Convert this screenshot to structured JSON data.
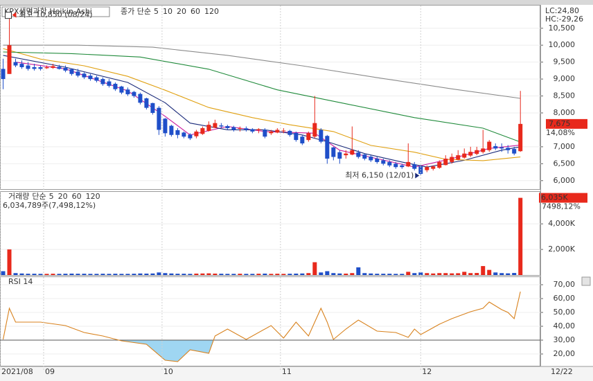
{
  "chart_data": [
    {
      "type": "candlestick",
      "title": "KPX생명과학  Heikin-Ashi",
      "ma_label": "종가 단순",
      "high_note": "최고 10,850 (08/24)",
      "low_note": "최저 6,150 (12/01)",
      "lc_text": "LC:24,80",
      "hc_text": "HC:-29,26",
      "price_tag": "7,675",
      "change_tag": "14,08%",
      "up_color": "#e8291c",
      "down_color": "#1f4fc9",
      "xlim": [
        -0.5,
        86.2
      ],
      "ylim": [
        5750,
        11170
      ],
      "yticks": [
        {
          "value": 6000,
          "label": "6,000"
        },
        {
          "value": 6500,
          "label": "6,500"
        },
        {
          "value": 7000,
          "label": "7,000"
        },
        {
          "value": 8000,
          "label": "8,000"
        },
        {
          "value": 8500,
          "label": "8,500"
        },
        {
          "value": 9000,
          "label": "9,000"
        },
        {
          "value": 9500,
          "label": "9,500"
        },
        {
          "value": 10000,
          "label": "10,000"
        },
        {
          "value": 10500,
          "label": "10,500"
        }
      ],
      "open": [
        9300,
        9150,
        9500,
        9450,
        9400,
        9350,
        9350,
        9320,
        9330,
        9360,
        9330,
        9290,
        9220,
        9160,
        9100,
        9050,
        9000,
        8930,
        8860,
        8780,
        8690,
        8620,
        8560,
        8430,
        8290,
        8150,
        7830,
        7620,
        7490,
        7420,
        7360,
        7310,
        7380,
        7470,
        7560,
        7630,
        7610,
        7580,
        7540,
        7545,
        7520,
        7490,
        7505,
        7400,
        7420,
        7460,
        7470,
        7410,
        7300,
        7200,
        7300,
        7500,
        7320,
        6980,
        6840,
        6750,
        6770,
        6830,
        6770,
        6710,
        6650,
        6600,
        6550,
        6500,
        6450,
        6420,
        6480,
        6420,
        6310,
        6350,
        6380,
        6460,
        6550,
        6620,
        6680,
        6740,
        6790,
        6845,
        6900,
        7020,
        6985,
        6970,
        6935,
        6870
      ],
      "high": [
        9600,
        10850,
        9600,
        9550,
        9500,
        9450,
        9400,
        9400,
        9450,
        9420,
        9400,
        9300,
        9300,
        9200,
        9150,
        9100,
        9050,
        9000,
        8900,
        8800,
        8750,
        8650,
        8600,
        8450,
        8300,
        8200,
        7850,
        7650,
        7550,
        7450,
        7400,
        7500,
        7600,
        7750,
        7800,
        7700,
        7650,
        7620,
        7600,
        7600,
        7550,
        7550,
        7550,
        7500,
        7550,
        7550,
        7500,
        7450,
        7350,
        7450,
        8500,
        7550,
        7350,
        7000,
        6900,
        6900,
        7600,
        6900,
        6800,
        6750,
        6700,
        6650,
        6600,
        6550,
        6500,
        7100,
        6550,
        6450,
        6450,
        6450,
        6600,
        6750,
        6800,
        6900,
        6950,
        7000,
        7000,
        7500,
        7200,
        7100,
        7100,
        7050,
        7000,
        8650
      ],
      "low": [
        8700,
        9150,
        9350,
        9300,
        9250,
        9250,
        9250,
        9300,
        9300,
        9280,
        9200,
        9100,
        9050,
        9000,
        8950,
        8900,
        8800,
        8750,
        8650,
        8550,
        8500,
        8450,
        8250,
        8100,
        7950,
        7350,
        7300,
        7300,
        7250,
        7250,
        7200,
        7250,
        7350,
        7450,
        7550,
        7550,
        7500,
        7450,
        7450,
        7450,
        7400,
        7400,
        7250,
        7350,
        7400,
        7400,
        7300,
        7150,
        7050,
        7150,
        7250,
        7100,
        6500,
        6600,
        6500,
        6650,
        6750,
        6650,
        6600,
        6550,
        6500,
        6450,
        6400,
        6350,
        6350,
        6400,
        6300,
        6150,
        6250,
        6300,
        6350,
        6450,
        6500,
        6600,
        6650,
        6700,
        6750,
        6800,
        6850,
        6900,
        6850,
        6800,
        6750,
        6850
      ],
      "close": [
        9000,
        10000,
        9400,
        9350,
        9300,
        9300,
        9300,
        9350,
        9380,
        9300,
        9250,
        9150,
        9100,
        9050,
        9000,
        8950,
        8850,
        8800,
        8700,
        8600,
        8550,
        8500,
        8300,
        8150,
        8000,
        7500,
        7400,
        7350,
        7350,
        7300,
        7250,
        7450,
        7550,
        7650,
        7700,
        7600,
        7550,
        7500,
        7550,
        7500,
        7450,
        7520,
        7300,
        7450,
        7500,
        7480,
        7350,
        7200,
        7100,
        7400,
        7700,
        7150,
        6650,
        6700,
        6650,
        6800,
        6900,
        6700,
        6650,
        6600,
        6550,
        6500,
        6450,
        6400,
        6400,
        6550,
        6350,
        6200,
        6400,
        6420,
        6550,
        6650,
        6700,
        6750,
        6800,
        6850,
        6900,
        6950,
        7150,
        6950,
        6950,
        6900,
        6800,
        7675
      ],
      "series": [
        {
          "name": "5",
          "color": "#c8189c",
          "x": [
            2,
            10,
            20,
            26,
            30,
            36,
            42,
            50,
            54,
            60,
            66,
            72,
            78,
            83
          ],
          "values": [
            9500,
            9300,
            8650,
            7900,
            7350,
            7600,
            7450,
            7400,
            6900,
            6650,
            6400,
            6650,
            6950,
            7050
          ]
        },
        {
          "name": "10",
          "color": "#1a2a7a",
          "x": [
            0,
            10,
            20,
            26,
            30,
            36,
            42,
            48,
            52,
            58,
            64,
            68,
            74,
            80,
            83
          ],
          "values": [
            9700,
            9350,
            8900,
            8300,
            7700,
            7500,
            7500,
            7350,
            7150,
            6800,
            6550,
            6400,
            6600,
            6900,
            7000
          ]
        },
        {
          "name": "20",
          "color": "#e0a010",
          "x": [
            0,
            6,
            13,
            20,
            26,
            33,
            40,
            46,
            53,
            59,
            66,
            71,
            77,
            83
          ],
          "values": [
            9900,
            9590,
            9390,
            9080,
            8670,
            8160,
            7860,
            7650,
            7450,
            7040,
            6840,
            6630,
            6590,
            6700
          ]
        },
        {
          "name": "60",
          "color": "#1f8a3a",
          "x": [
            0,
            11,
            22,
            33,
            44,
            55,
            66,
            77,
            83
          ],
          "values": [
            9800,
            9750,
            9650,
            9290,
            8680,
            8270,
            7860,
            7550,
            7140
          ]
        },
        {
          "name": "120",
          "color": "#8a8a8a",
          "x": [
            0,
            12,
            24,
            36,
            48,
            60,
            72,
            83
          ],
          "values": [
            10000,
            10000,
            9940,
            9700,
            9390,
            9040,
            8710,
            8430
          ]
        }
      ]
    },
    {
      "type": "bar",
      "title": "거래량",
      "ma_label": "단순",
      "volume_text": "6,034,789주(7,498,12%)",
      "tag": "6,035K",
      "tag2": "7498,12%",
      "legend": [
        {
          "name": "5",
          "color": "#c8189c"
        },
        {
          "name": "20",
          "color": "#e0a010"
        },
        {
          "name": "60",
          "color": "#1f8a3a"
        },
        {
          "name": "120",
          "color": "#8a8a8a"
        }
      ],
      "xlim": [
        -0.5,
        86.2
      ],
      "ylim": [
        0,
        6500
      ],
      "yticks": [
        {
          "value": 2000,
          "label": "2,000K"
        },
        {
          "value": 4000,
          "label": "4,000K"
        }
      ],
      "values": [
        300,
        2000,
        150,
        120,
        100,
        100,
        90,
        90,
        100,
        90,
        100,
        110,
        100,
        100,
        90,
        90,
        100,
        90,
        100,
        90,
        90,
        100,
        120,
        110,
        120,
        200,
        150,
        120,
        100,
        100,
        90,
        110,
        120,
        130,
        110,
        100,
        90,
        90,
        100,
        90,
        90,
        100,
        110,
        90,
        100,
        90,
        100,
        110,
        120,
        150,
        1000,
        200,
        300,
        150,
        120,
        110,
        150,
        600,
        150,
        120,
        100,
        100,
        100,
        90,
        90,
        250,
        150,
        200,
        150,
        120,
        150,
        150,
        130,
        140,
        250,
        150,
        160,
        700,
        400,
        200,
        150,
        130,
        160,
        6035
      ]
    },
    {
      "type": "line",
      "title": "RSI 14",
      "color": "#d8811c",
      "oversold_level": 30,
      "last_date": "12/22",
      "xlim": [
        -0.5,
        86.2
      ],
      "ylim": [
        11.5,
        75.5
      ],
      "yticks": [
        {
          "value": 20,
          "label": "20,00"
        },
        {
          "value": 30,
          "label": "30,00"
        },
        {
          "value": 40,
          "label": "40,00"
        },
        {
          "value": 50,
          "label": "50,00"
        },
        {
          "value": 60,
          "label": "60,00"
        },
        {
          "value": 70,
          "label": "70,00"
        }
      ],
      "xticks": [
        {
          "value": -0.5,
          "label": "2021/08"
        },
        {
          "value": 6.5,
          "label": "09"
        },
        {
          "value": 25.5,
          "label": "10"
        },
        {
          "value": 44.5,
          "label": "11"
        },
        {
          "value": 67,
          "label": "12"
        }
      ],
      "x": [
        0,
        1,
        2,
        6,
        10,
        13,
        16,
        19,
        23,
        26,
        28,
        30,
        33,
        34,
        36,
        39,
        43,
        45,
        47,
        49,
        51,
        52,
        53,
        55,
        57,
        60,
        63,
        65,
        66,
        67,
        68,
        70,
        72,
        75,
        77,
        78,
        80,
        81,
        82,
        83
      ],
      "values": [
        30.5,
        53,
        43,
        43,
        40.5,
        35.5,
        33,
        29.5,
        27,
        15.5,
        14.5,
        23,
        20.5,
        33,
        38,
        30.5,
        40.5,
        31.5,
        43,
        33,
        53,
        43,
        30.5,
        38,
        44.5,
        36.5,
        35.5,
        32,
        38,
        34,
        36.5,
        41.5,
        45.5,
        50.5,
        53,
        57.5,
        52,
        50,
        45.5,
        65
      ]
    }
  ]
}
